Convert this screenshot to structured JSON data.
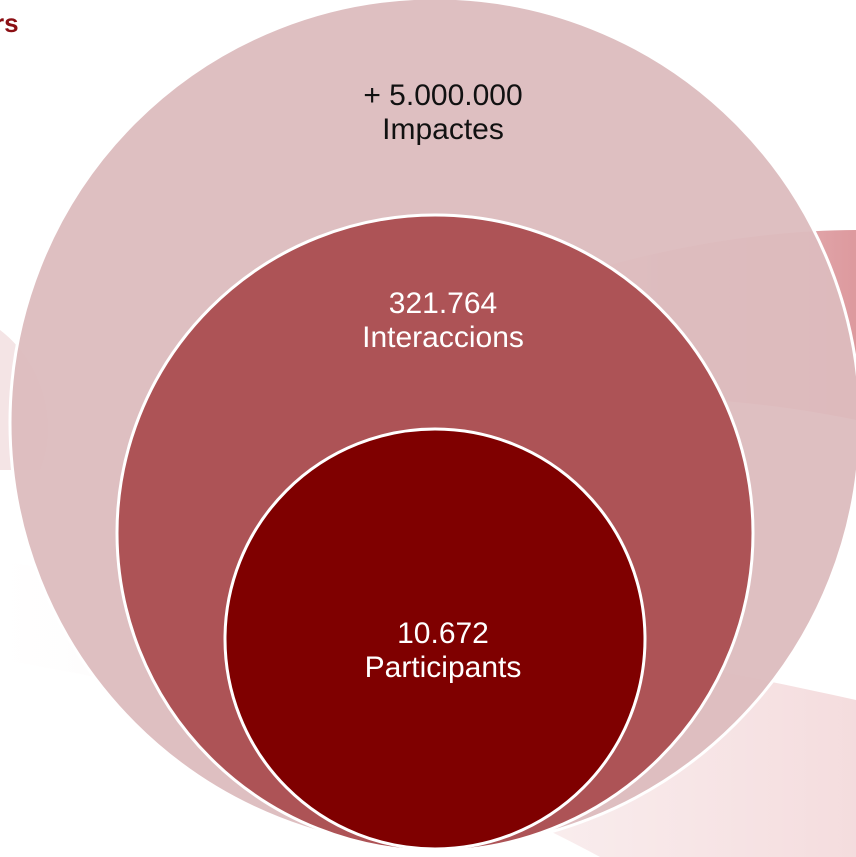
{
  "header": {
    "corner_text": "rs"
  },
  "colors": {
    "outer_fill": "#dcbcbe",
    "middle_fill": "#ad5356",
    "inner_fill": "#7f0000",
    "outline": "#ffffff",
    "title_color": "#8b0f14"
  },
  "circles": {
    "outer": {
      "value": "+ 5.000.000",
      "label": "Impactes"
    },
    "middle": {
      "value": "321.764",
      "label": "Interaccions"
    },
    "inner": {
      "value": "10.672",
      "label": "Participants"
    }
  }
}
